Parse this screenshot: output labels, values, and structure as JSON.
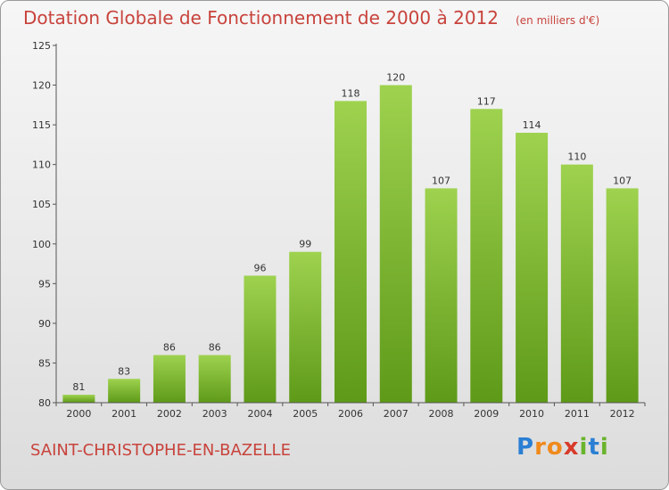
{
  "chart_data": {
    "type": "bar",
    "title": "Dotation Globale de Fonctionnement de 2000 à 2012",
    "unit_note": "(en milliers d'€)",
    "categories": [
      "2000",
      "2001",
      "2002",
      "2003",
      "2004",
      "2005",
      "2006",
      "2007",
      "2008",
      "2009",
      "2010",
      "2011",
      "2012"
    ],
    "values": [
      81,
      83,
      86,
      86,
      96,
      99,
      118,
      120,
      107,
      117,
      114,
      110,
      107
    ],
    "ylim": [
      80,
      125
    ],
    "yticks": [
      80,
      85,
      90,
      95,
      100,
      105,
      110,
      115,
      120,
      125
    ],
    "grid": false,
    "bar_color": "#7cbf2e"
  },
  "footer": {
    "commune": "SAINT-CHRISTOPHE-EN-BAZELLE",
    "logo_letters": [
      "P",
      "r",
      "o",
      "x",
      "i",
      "t",
      "i"
    ],
    "logo_colors": [
      "#2a7fd4",
      "#f08a1c",
      "#f08a1c",
      "#d83a2a",
      "#6ab42d",
      "#2a7fd4",
      "#6ab42d"
    ]
  }
}
